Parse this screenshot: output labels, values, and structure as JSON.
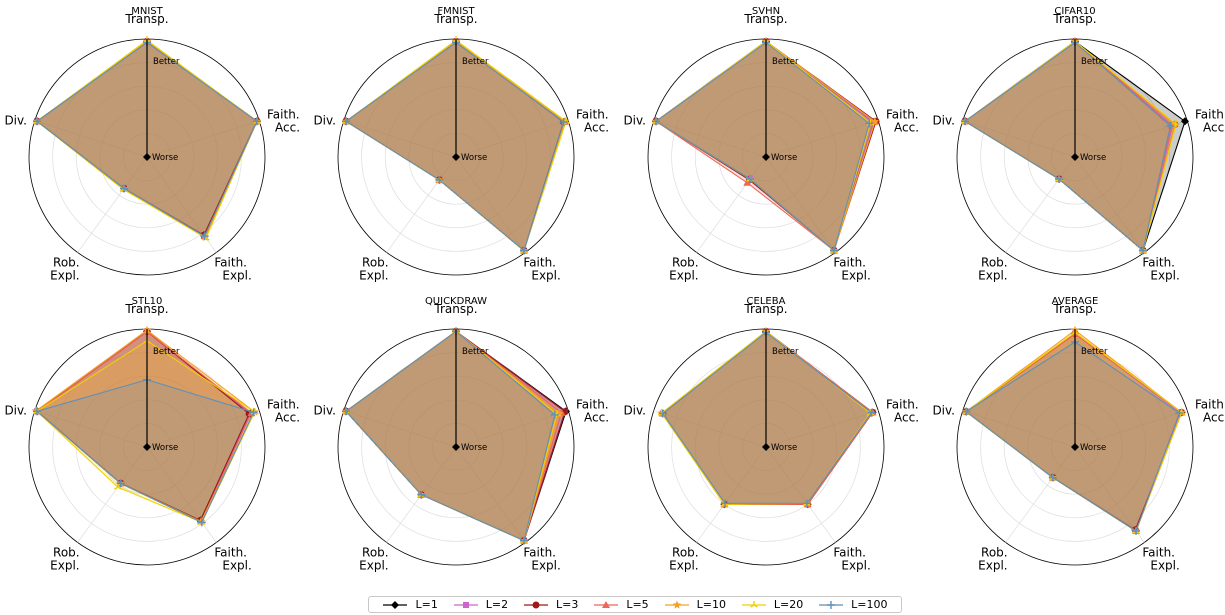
{
  "chart_data": [
    {
      "type": "radar",
      "title": "MNIST",
      "axes": [
        "Transp.",
        "Faith.\nAcc.",
        "Faith.\nExpl.",
        "Rob.\nExpl.",
        "Div."
      ],
      "series": [
        {
          "name": "L=1",
          "values": [
            0.98,
            0.98,
            0.82,
            0.33,
            0.98
          ]
        },
        {
          "name": "L=2",
          "values": [
            0.98,
            0.98,
            0.82,
            0.33,
            0.98
          ]
        },
        {
          "name": "L=3",
          "values": [
            0.98,
            0.98,
            0.82,
            0.33,
            0.98
          ]
        },
        {
          "name": "L=5",
          "values": [
            0.98,
            0.98,
            0.83,
            0.33,
            0.98
          ]
        },
        {
          "name": "L=10",
          "values": [
            0.98,
            0.98,
            0.84,
            0.33,
            0.98
          ]
        },
        {
          "name": "L=20",
          "values": [
            0.99,
            0.98,
            0.85,
            0.34,
            0.98
          ]
        },
        {
          "name": "L=100",
          "values": [
            0.97,
            0.98,
            0.83,
            0.33,
            0.98
          ]
        }
      ]
    },
    {
      "type": "radar",
      "title": "FMNIST",
      "axes": [
        "Transp.",
        "Faith.\nAcc.",
        "Faith.\nExpl.",
        "Rob.\nExpl.",
        "Div."
      ],
      "series": [
        {
          "name": "L=1",
          "values": [
            0.98,
            0.96,
            0.98,
            0.24,
            0.98
          ]
        },
        {
          "name": "L=2",
          "values": [
            0.98,
            0.96,
            0.98,
            0.24,
            0.98
          ]
        },
        {
          "name": "L=3",
          "values": [
            0.98,
            0.96,
            0.98,
            0.24,
            0.98
          ]
        },
        {
          "name": "L=5",
          "values": [
            0.98,
            0.97,
            0.98,
            0.24,
            0.98
          ]
        },
        {
          "name": "L=10",
          "values": [
            0.98,
            0.97,
            0.98,
            0.24,
            0.98
          ]
        },
        {
          "name": "L=20",
          "values": [
            0.99,
            0.98,
            0.98,
            0.24,
            0.98
          ]
        },
        {
          "name": "L=100",
          "values": [
            0.97,
            0.96,
            0.98,
            0.24,
            0.98
          ]
        }
      ]
    },
    {
      "type": "radar",
      "title": "SVHN",
      "axes": [
        "Transp.",
        "Faith.\nAcc.",
        "Faith.\nExpl.",
        "Rob.\nExpl.",
        "Div."
      ],
      "series": [
        {
          "name": "L=1",
          "values": [
            0.98,
            0.96,
            0.98,
            0.23,
            0.98
          ]
        },
        {
          "name": "L=2",
          "values": [
            0.98,
            0.96,
            0.98,
            0.23,
            0.98
          ]
        },
        {
          "name": "L=3",
          "values": [
            0.98,
            0.98,
            0.98,
            0.24,
            0.98
          ]
        },
        {
          "name": "L=5",
          "values": [
            0.98,
            0.97,
            0.98,
            0.27,
            0.98
          ]
        },
        {
          "name": "L=10",
          "values": [
            0.98,
            0.97,
            0.98,
            0.23,
            0.98
          ]
        },
        {
          "name": "L=20",
          "values": [
            0.98,
            0.93,
            0.98,
            0.23,
            0.98
          ]
        },
        {
          "name": "L=100",
          "values": [
            0.97,
            0.92,
            0.98,
            0.23,
            0.98
          ]
        }
      ]
    },
    {
      "type": "radar",
      "title": "CIFAR10",
      "axes": [
        "Transp.",
        "Faith.\nAcc.",
        "Faith.\nExpl.",
        "Rob.\nExpl.",
        "Div."
      ],
      "series": [
        {
          "name": "L=1",
          "values": [
            0.98,
            0.98,
            0.98,
            0.23,
            0.98
          ]
        },
        {
          "name": "L=2",
          "values": [
            0.98,
            0.87,
            0.98,
            0.23,
            0.98
          ]
        },
        {
          "name": "L=3",
          "values": [
            0.98,
            0.89,
            0.98,
            0.23,
            0.98
          ]
        },
        {
          "name": "L=5",
          "values": [
            0.98,
            0.86,
            0.98,
            0.23,
            0.98
          ]
        },
        {
          "name": "L=10",
          "values": [
            0.98,
            0.89,
            0.98,
            0.23,
            0.98
          ]
        },
        {
          "name": "L=20",
          "values": [
            0.98,
            0.9,
            0.98,
            0.23,
            0.98
          ]
        },
        {
          "name": "L=100",
          "values": [
            0.97,
            0.85,
            0.98,
            0.23,
            0.98
          ]
        }
      ]
    },
    {
      "type": "radar",
      "title": "STL10",
      "axes": [
        "Transp.",
        "Faith.\nAcc.",
        "Faith.\nExpl.",
        "Rob.\nExpl.",
        "Div."
      ],
      "series": [
        {
          "name": "L=1",
          "values": [
            0.98,
            0.92,
            0.77,
            0.38,
            0.98
          ]
        },
        {
          "name": "L=2",
          "values": [
            0.98,
            0.92,
            0.78,
            0.38,
            0.98
          ]
        },
        {
          "name": "L=3",
          "values": [
            0.98,
            0.91,
            0.77,
            0.38,
            0.98
          ]
        },
        {
          "name": "L=5",
          "values": [
            0.98,
            0.93,
            0.78,
            0.38,
            0.98
          ]
        },
        {
          "name": "L=10",
          "values": [
            0.99,
            0.96,
            0.78,
            0.38,
            0.99
          ]
        },
        {
          "name": "L=20",
          "values": [
            0.9,
            0.96,
            0.79,
            0.42,
            0.98
          ]
        },
        {
          "name": "L=100",
          "values": [
            0.57,
            0.95,
            0.79,
            0.38,
            0.98
          ]
        }
      ]
    },
    {
      "type": "radar",
      "title": "QUICKDRAW",
      "axes": [
        "Transp.",
        "Faith.\nAcc.",
        "Faith.\nExpl.",
        "Rob.\nExpl.",
        "Div."
      ],
      "series": [
        {
          "name": "L=1",
          "values": [
            0.98,
            0.98,
            0.98,
            0.5,
            0.98
          ]
        },
        {
          "name": "L=2",
          "values": [
            0.98,
            0.97,
            0.98,
            0.5,
            0.98
          ]
        },
        {
          "name": "L=3",
          "values": [
            0.98,
            0.97,
            0.98,
            0.5,
            0.98
          ]
        },
        {
          "name": "L=5",
          "values": [
            0.98,
            0.94,
            0.98,
            0.5,
            0.98
          ]
        },
        {
          "name": "L=10",
          "values": [
            0.98,
            0.92,
            0.98,
            0.5,
            0.98
          ]
        },
        {
          "name": "L=20",
          "values": [
            0.98,
            0.9,
            0.98,
            0.5,
            0.98
          ]
        },
        {
          "name": "L=100",
          "values": [
            0.98,
            0.88,
            0.98,
            0.5,
            0.98
          ]
        }
      ]
    },
    {
      "type": "radar",
      "title": "CELEBA",
      "axes": [
        "Transp.",
        "Faith.\nAcc.",
        "Faith.\nExpl.",
        "Rob.\nExpl.",
        "Div."
      ],
      "series": [
        {
          "name": "L=1",
          "values": [
            0.98,
            0.95,
            0.6,
            0.6,
            0.92
          ]
        },
        {
          "name": "L=2",
          "values": [
            0.98,
            0.95,
            0.6,
            0.6,
            0.92
          ]
        },
        {
          "name": "L=3",
          "values": [
            0.98,
            0.95,
            0.6,
            0.6,
            0.92
          ]
        },
        {
          "name": "L=5",
          "values": [
            0.98,
            0.95,
            0.6,
            0.6,
            0.92
          ]
        },
        {
          "name": "L=10",
          "values": [
            0.98,
            0.93,
            0.59,
            0.6,
            0.93
          ]
        },
        {
          "name": "L=20",
          "values": [
            0.98,
            0.93,
            0.59,
            0.6,
            0.93
          ]
        },
        {
          "name": "L=100",
          "values": [
            0.97,
            0.94,
            0.59,
            0.59,
            0.92
          ]
        }
      ]
    },
    {
      "type": "radar",
      "title": "AVERAGE",
      "axes": [
        "Transp.",
        "Faith.\nAcc.",
        "Faith.\nExpl.",
        "Rob.\nExpl.",
        "Div."
      ],
      "series": [
        {
          "name": "L=1",
          "values": [
            0.96,
            0.95,
            0.87,
            0.32,
            0.97
          ]
        },
        {
          "name": "L=2",
          "values": [
            0.96,
            0.94,
            0.87,
            0.32,
            0.97
          ]
        },
        {
          "name": "L=3",
          "values": [
            0.96,
            0.95,
            0.87,
            0.32,
            0.97
          ]
        },
        {
          "name": "L=5",
          "values": [
            0.96,
            0.95,
            0.88,
            0.32,
            0.97
          ]
        },
        {
          "name": "L=10",
          "values": [
            0.99,
            0.95,
            0.88,
            0.32,
            0.97
          ]
        },
        {
          "name": "L=20",
          "values": [
            0.97,
            0.95,
            0.88,
            0.32,
            0.97
          ]
        },
        {
          "name": "L=100",
          "values": [
            0.89,
            0.93,
            0.88,
            0.32,
            0.97
          ]
        }
      ]
    }
  ],
  "radial_labels": {
    "outer": "Better",
    "center": "Worse"
  },
  "legend": [
    {
      "name": "L=1",
      "color": "#000000",
      "marker": "diamond"
    },
    {
      "name": "L=2",
      "color": "#cc66cc",
      "marker": "square"
    },
    {
      "name": "L=3",
      "color": "#a01818",
      "marker": "circle"
    },
    {
      "name": "L=5",
      "color": "#ee6655",
      "marker": "triangle"
    },
    {
      "name": "L=10",
      "color": "#f5a020",
      "marker": "star"
    },
    {
      "name": "L=20",
      "color": "#f0d000",
      "marker": "tri"
    },
    {
      "name": "L=100",
      "color": "#5f90b8",
      "marker": "plus"
    }
  ]
}
